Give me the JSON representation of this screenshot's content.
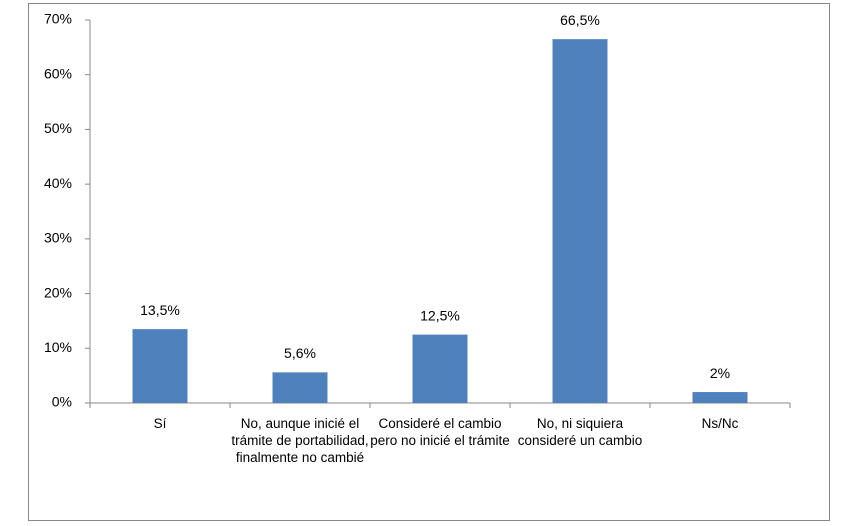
{
  "chart_data": {
    "type": "bar",
    "categories": [
      "Sí",
      "No, aunque inicié el trámite de portabilidad, finalmente no cambié",
      "Consideré el cambio pero no inicié el trámite",
      "No, ni siquiera consideré un cambio",
      "Ns/Nc"
    ],
    "values": [
      13.5,
      5.6,
      12.5,
      66.5,
      2
    ],
    "value_labels": [
      "13,5%",
      "5,6%",
      "12,5%",
      "66,5%",
      "2%"
    ],
    "color": "#4f81bd",
    "ylim": [
      0,
      70
    ],
    "yticks": [
      {
        "value": 0,
        "label": "0%"
      },
      {
        "value": 10,
        "label": "10%"
      },
      {
        "value": 20,
        "label": "20%"
      },
      {
        "value": 30,
        "label": "30%"
      },
      {
        "value": 40,
        "label": "40%"
      },
      {
        "value": 50,
        "label": "50%"
      },
      {
        "value": 60,
        "label": "60%"
      },
      {
        "value": 70,
        "label": "70%"
      }
    ],
    "grid": false
  }
}
